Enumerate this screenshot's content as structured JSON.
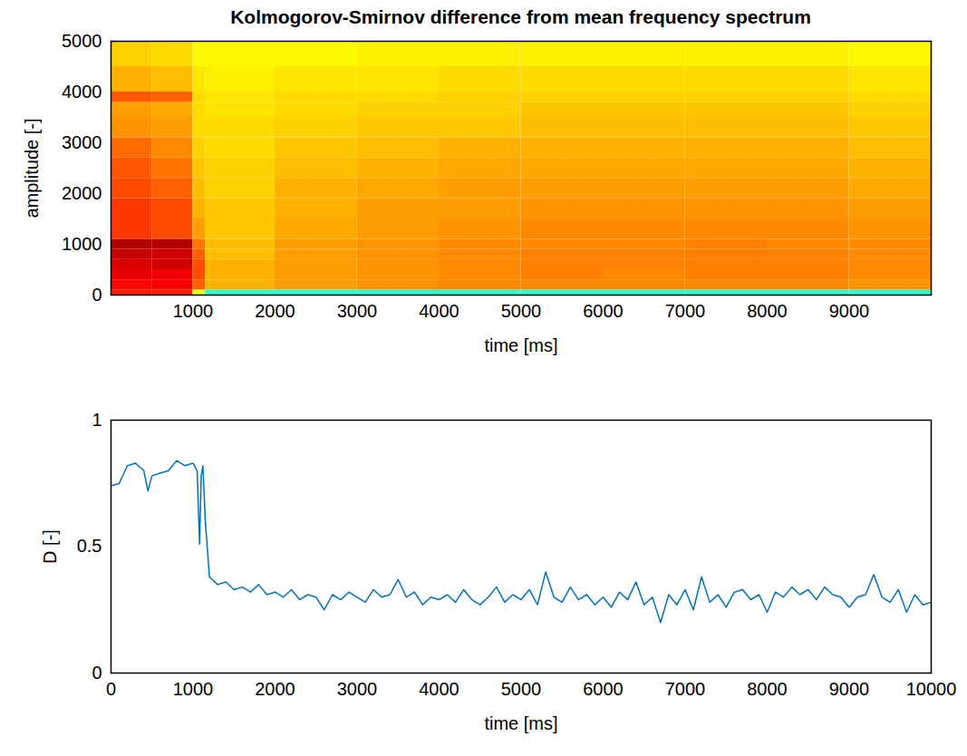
{
  "chart_data": [
    {
      "type": "heatmap",
      "title": "Kolmogorov-Smirnov difference from mean frequency spectrum",
      "xlabel": "time [ms]",
      "ylabel": "amplitude [-]",
      "xlim": [
        0,
        10000
      ],
      "ylim": [
        0,
        5000
      ],
      "xticks": [
        1000,
        2000,
        3000,
        4000,
        5000,
        6000,
        7000,
        8000,
        9000
      ],
      "yticks": [
        0,
        1000,
        2000,
        3000,
        4000,
        5000
      ],
      "x_bins": [
        0,
        500,
        1000,
        1150,
        2000,
        3000,
        4000,
        5000,
        6000,
        7000,
        8000,
        9000,
        10000
      ],
      "y_bins": [
        0,
        100,
        300,
        500,
        700,
        900,
        1100,
        1500,
        1900,
        2300,
        2700,
        3100,
        3500,
        3800,
        4000,
        4500,
        5000
      ],
      "zlim": [
        0,
        1
      ],
      "z": [
        [
          0.85,
          0.85,
          0.6,
          0.42,
          0.42,
          0.42,
          0.42,
          0.42,
          0.42,
          0.42,
          0.42,
          0.42
        ],
        [
          0.87,
          0.88,
          0.78,
          0.7,
          0.72,
          0.73,
          0.74,
          0.74,
          0.74,
          0.74,
          0.74,
          0.73
        ],
        [
          0.9,
          0.89,
          0.8,
          0.7,
          0.72,
          0.73,
          0.74,
          0.75,
          0.74,
          0.75,
          0.75,
          0.74
        ],
        [
          0.91,
          0.92,
          0.8,
          0.7,
          0.72,
          0.73,
          0.74,
          0.75,
          0.75,
          0.75,
          0.75,
          0.74
        ],
        [
          0.93,
          0.92,
          0.78,
          0.69,
          0.72,
          0.73,
          0.74,
          0.75,
          0.75,
          0.75,
          0.75,
          0.74
        ],
        [
          0.95,
          0.95,
          0.76,
          0.69,
          0.72,
          0.73,
          0.74,
          0.74,
          0.74,
          0.75,
          0.74,
          0.74
        ],
        [
          0.82,
          0.8,
          0.72,
          0.68,
          0.71,
          0.72,
          0.73,
          0.74,
          0.74,
          0.74,
          0.74,
          0.73
        ],
        [
          0.82,
          0.8,
          0.7,
          0.68,
          0.7,
          0.72,
          0.72,
          0.73,
          0.73,
          0.73,
          0.73,
          0.72
        ],
        [
          0.8,
          0.78,
          0.69,
          0.67,
          0.7,
          0.71,
          0.72,
          0.72,
          0.72,
          0.72,
          0.72,
          0.71
        ],
        [
          0.79,
          0.76,
          0.68,
          0.67,
          0.69,
          0.7,
          0.71,
          0.71,
          0.71,
          0.71,
          0.71,
          0.7
        ],
        [
          0.77,
          0.74,
          0.67,
          0.66,
          0.68,
          0.69,
          0.7,
          0.7,
          0.7,
          0.7,
          0.7,
          0.69
        ],
        [
          0.73,
          0.72,
          0.66,
          0.66,
          0.67,
          0.68,
          0.68,
          0.69,
          0.69,
          0.69,
          0.69,
          0.68
        ],
        [
          0.72,
          0.71,
          0.66,
          0.65,
          0.66,
          0.67,
          0.67,
          0.68,
          0.68,
          0.68,
          0.68,
          0.67
        ],
        [
          0.79,
          0.78,
          0.66,
          0.65,
          0.66,
          0.66,
          0.67,
          0.67,
          0.67,
          0.67,
          0.67,
          0.66
        ],
        [
          0.7,
          0.69,
          0.65,
          0.64,
          0.65,
          0.65,
          0.66,
          0.66,
          0.66,
          0.66,
          0.66,
          0.65
        ],
        [
          0.67,
          0.66,
          0.63,
          0.63,
          0.63,
          0.64,
          0.64,
          0.64,
          0.64,
          0.64,
          0.64,
          0.63
        ]
      ]
    },
    {
      "type": "line",
      "xlabel": "time [ms]",
      "ylabel": "D [-]",
      "color": "#0072bd",
      "xlim": [
        0,
        10000
      ],
      "ylim": [
        0,
        1
      ],
      "xticks": [
        0,
        1000,
        2000,
        3000,
        4000,
        5000,
        6000,
        7000,
        8000,
        9000,
        10000
      ],
      "yticks": [
        0,
        0.5,
        1
      ],
      "x": [
        0,
        100,
        200,
        300,
        400,
        450,
        500,
        600,
        700,
        800,
        900,
        1000,
        1050,
        1080,
        1100,
        1120,
        1150,
        1200,
        1300,
        1400,
        1500,
        1600,
        1700,
        1800,
        1900,
        2000,
        2100,
        2200,
        2300,
        2400,
        2500,
        2600,
        2700,
        2800,
        2900,
        3000,
        3100,
        3200,
        3300,
        3400,
        3500,
        3600,
        3700,
        3800,
        3900,
        4000,
        4100,
        4200,
        4300,
        4400,
        4500,
        4600,
        4700,
        4800,
        4900,
        5000,
        5100,
        5200,
        5300,
        5400,
        5500,
        5600,
        5700,
        5800,
        5900,
        6000,
        6100,
        6200,
        6300,
        6400,
        6500,
        6600,
        6700,
        6800,
        6900,
        7000,
        7100,
        7200,
        7300,
        7400,
        7500,
        7600,
        7700,
        7800,
        7900,
        8000,
        8100,
        8200,
        8300,
        8400,
        8500,
        8600,
        8700,
        8800,
        8900,
        9000,
        9100,
        9200,
        9300,
        9400,
        9500,
        9600,
        9700,
        9800,
        9900,
        10000
      ],
      "values": [
        0.74,
        0.75,
        0.82,
        0.83,
        0.8,
        0.72,
        0.78,
        0.79,
        0.8,
        0.84,
        0.82,
        0.83,
        0.8,
        0.51,
        0.78,
        0.82,
        0.6,
        0.38,
        0.35,
        0.36,
        0.33,
        0.34,
        0.32,
        0.35,
        0.31,
        0.32,
        0.3,
        0.33,
        0.29,
        0.31,
        0.3,
        0.25,
        0.31,
        0.29,
        0.32,
        0.3,
        0.28,
        0.33,
        0.3,
        0.31,
        0.37,
        0.3,
        0.32,
        0.27,
        0.3,
        0.29,
        0.31,
        0.28,
        0.33,
        0.29,
        0.27,
        0.3,
        0.34,
        0.28,
        0.31,
        0.29,
        0.33,
        0.27,
        0.4,
        0.3,
        0.28,
        0.34,
        0.29,
        0.31,
        0.27,
        0.3,
        0.26,
        0.32,
        0.29,
        0.36,
        0.27,
        0.3,
        0.2,
        0.31,
        0.27,
        0.33,
        0.25,
        0.38,
        0.28,
        0.31,
        0.26,
        0.32,
        0.33,
        0.29,
        0.31,
        0.24,
        0.32,
        0.3,
        0.34,
        0.31,
        0.33,
        0.29,
        0.34,
        0.31,
        0.3,
        0.26,
        0.3,
        0.31,
        0.39,
        0.3,
        0.28,
        0.33,
        0.24,
        0.31,
        0.27,
        0.28
      ]
    }
  ]
}
